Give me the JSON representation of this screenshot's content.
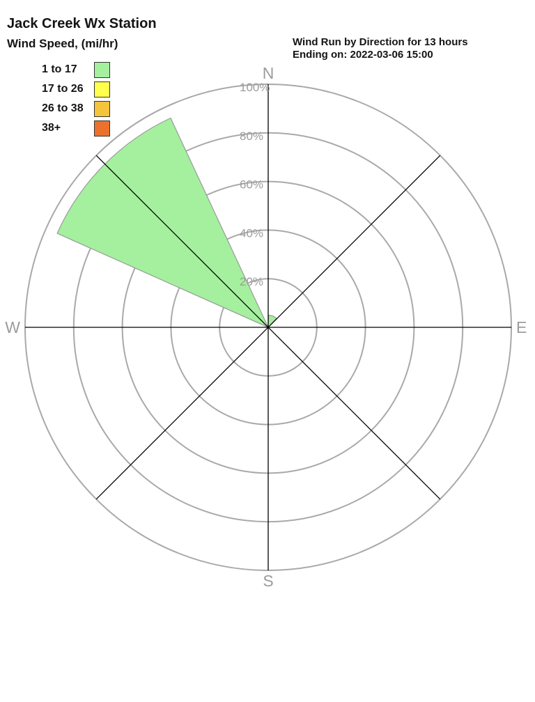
{
  "page_title": "Jack Creek Wx Station",
  "legend": {
    "title": "Wind Speed, (mi/hr)",
    "items": [
      {
        "label": "1 to 17",
        "color": "#a4f09e"
      },
      {
        "label": "17 to 26",
        "color": "#ffff4d"
      },
      {
        "label": "26 to 38",
        "color": "#f3c43c"
      },
      {
        "label": "38+",
        "color": "#eb712c"
      }
    ]
  },
  "subtitle": {
    "line1": "Wind Run by Direction for 13 hours",
    "line2": "Ending on: 2022-03-06 15:00"
  },
  "chart_data": {
    "type": "wind-rose-polar-area",
    "title": "Wind Run by Direction for 13 hours",
    "station": "Jack Creek Wx Station",
    "period_hours": 13,
    "ending_on": "2022-03-06 15:00",
    "radial_unit": "% of wind run",
    "radial_axis": {
      "rlim": [
        0,
        100
      ],
      "ticks": [
        20,
        40,
        60,
        80,
        100
      ],
      "tick_labels": [
        "20%",
        "40%",
        "60%",
        "80%",
        "100%"
      ]
    },
    "compass": {
      "n": "N",
      "e": "E",
      "s": "S",
      "w": "W"
    },
    "speed_bins_mph": [
      "1 to 17",
      "17 to 26",
      "26 to 38",
      "38+"
    ],
    "sectors": [
      {
        "direction": "NW",
        "start_deg": 294,
        "end_deg": 335,
        "value_pct": 95,
        "speed_bin": "1 to 17"
      },
      {
        "direction": "N",
        "start_deg": 2,
        "end_deg": 43,
        "value_pct": 5,
        "speed_bin": "1 to 17"
      }
    ],
    "grid": "concentric circles every 20% with 8 radial spokes"
  }
}
